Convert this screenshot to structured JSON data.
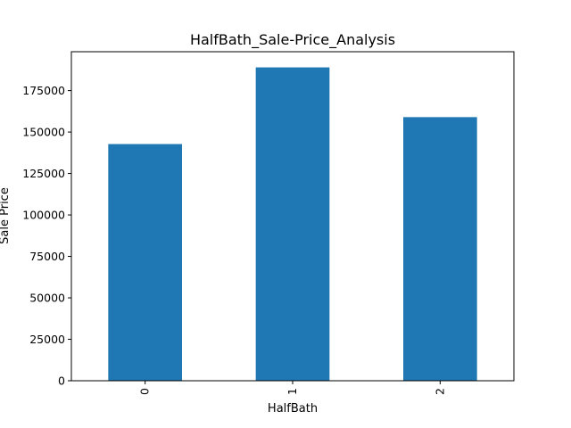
{
  "chart_data": {
    "type": "bar",
    "title": "HalfBath_Sale-Price_Analysis",
    "xlabel": "HalfBath",
    "ylabel": "Sale Price",
    "categories": [
      "0",
      "1",
      "2"
    ],
    "values": [
      142750,
      189000,
      159000
    ],
    "ylim": [
      0,
      198450
    ],
    "yticks": [
      0,
      25000,
      50000,
      75000,
      100000,
      125000,
      150000,
      175000
    ],
    "ytick_labels": [
      "0",
      "25000",
      "50000",
      "75000",
      "100000",
      "125000",
      "150000",
      "175000"
    ],
    "x_tick_rotation": "vertical",
    "grid": false,
    "legend": "none",
    "bar_color": "#1f77b4"
  }
}
